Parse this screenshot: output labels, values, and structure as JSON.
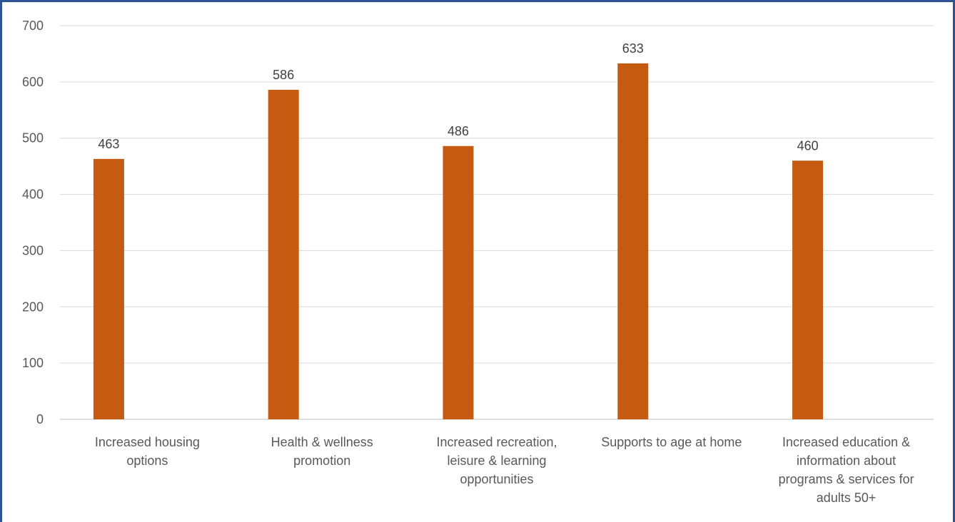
{
  "colors": {
    "bar": "#C55A11",
    "frame": "#2F5496",
    "grid": "#D9D9D9",
    "text": "#595959"
  },
  "chart_data": {
    "type": "bar",
    "title": "",
    "xlabel": "",
    "ylabel": "",
    "ylim": [
      0,
      700
    ],
    "y_ticks": [
      0,
      100,
      200,
      300,
      400,
      500,
      600,
      700
    ],
    "grid": true,
    "legend": "none",
    "data_labels": true,
    "categories": [
      [
        "Increased housing",
        "options"
      ],
      [
        "Health & wellness",
        "promotion"
      ],
      [
        "Increased recreation,",
        "leisure & learning",
        "opportunities"
      ],
      [
        "Supports to age at home"
      ],
      [
        "Increased education &",
        "information about",
        "programs & services for",
        "adults 50+"
      ]
    ],
    "values": [
      463,
      586,
      486,
      633,
      460
    ]
  }
}
